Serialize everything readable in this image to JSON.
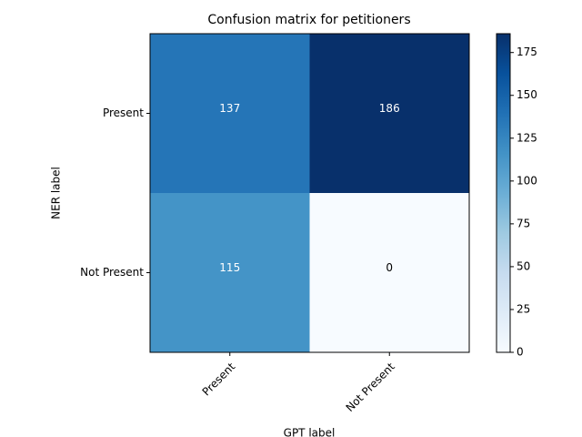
{
  "chart_data": {
    "type": "heatmap",
    "title": "Confusion matrix for petitioners",
    "x_label": "GPT label",
    "y_label": "NER label",
    "x_categories": [
      "Present",
      "Not Present"
    ],
    "y_categories": [
      "Present",
      "Not Present"
    ],
    "values": [
      [
        137,
        186
      ],
      [
        115,
        0
      ]
    ],
    "colormap": "Blues",
    "clim": [
      0,
      186
    ],
    "cticks": [
      0,
      25,
      50,
      75,
      100,
      125,
      150,
      175
    ]
  }
}
